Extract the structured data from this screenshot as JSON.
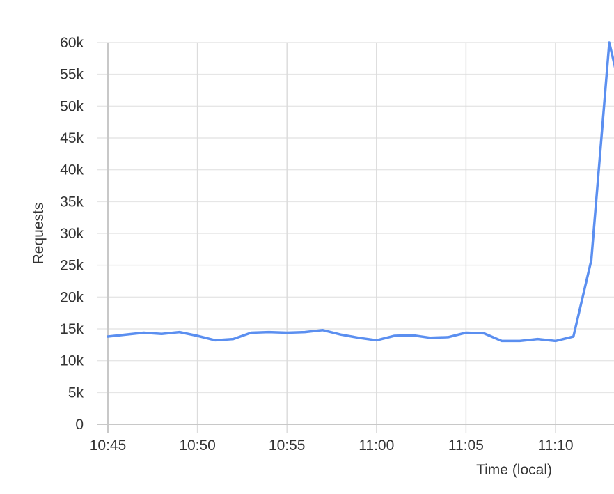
{
  "chart_data": {
    "type": "line",
    "title": "",
    "xlabel": "Time (local)",
    "ylabel": "Requests",
    "x_tick_labels": [
      "10:45",
      "10:50",
      "10:55",
      "11:00",
      "11:05",
      "11:10"
    ],
    "y_tick_labels": [
      "0",
      "5k",
      "10k",
      "15k",
      "20k",
      "25k",
      "30k",
      "35k",
      "40k",
      "45k",
      "50k",
      "55k",
      "60k"
    ],
    "ylim": [
      0,
      60000
    ],
    "grid": true,
    "legend": "none",
    "series": [
      {
        "color": "#5b8ff0",
        "x": [
          "10:45",
          "10:46",
          "10:47",
          "10:48",
          "10:49",
          "10:50",
          "10:51",
          "10:52",
          "10:53",
          "10:54",
          "10:55",
          "10:56",
          "10:57",
          "10:58",
          "10:59",
          "11:00",
          "11:01",
          "11:02",
          "11:03",
          "11:04",
          "11:05",
          "11:06",
          "11:07",
          "11:08",
          "11:09",
          "11:10",
          "11:11",
          "11:12",
          "11:13",
          "11:13:30"
        ],
        "y": [
          13800,
          14100,
          14400,
          14200,
          14500,
          13900,
          13200,
          13400,
          14400,
          14500,
          14400,
          14500,
          14800,
          14100,
          13600,
          13200,
          13900,
          14000,
          13600,
          13700,
          14400,
          14300,
          13100,
          13100,
          13400,
          13100,
          13800,
          25800,
          60000,
          54000
        ]
      }
    ]
  }
}
